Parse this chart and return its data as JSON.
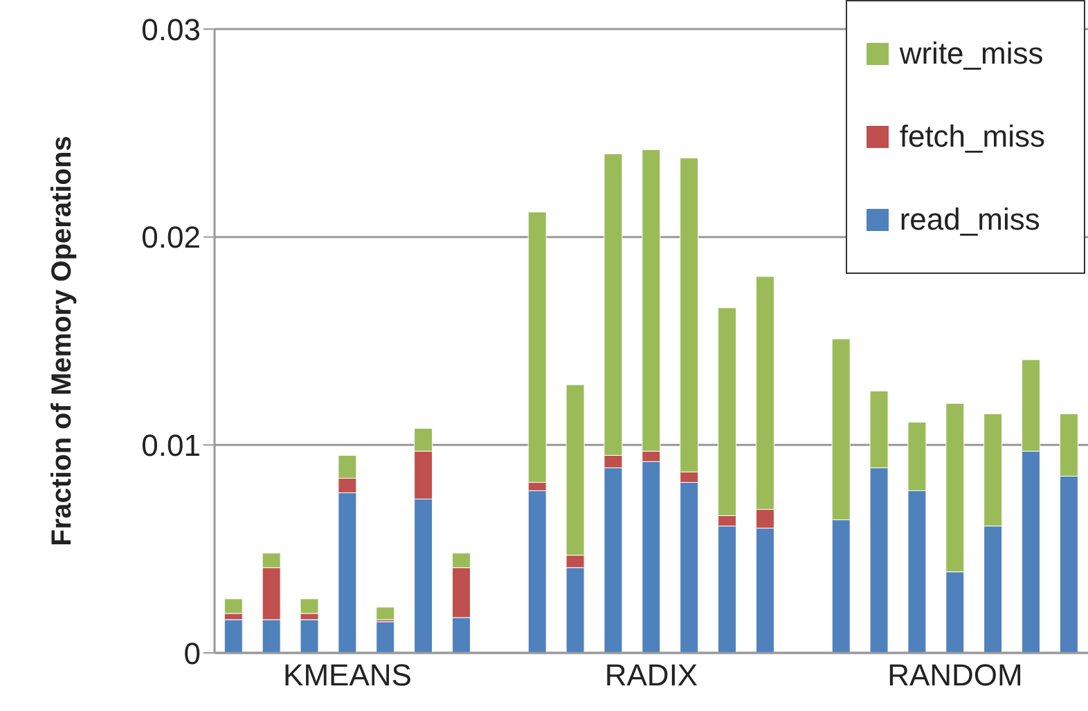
{
  "chart_data": {
    "type": "bar",
    "ylabel": "Fraction of Memory Operations",
    "categories": [
      null,
      null,
      null,
      "KMEANS",
      null,
      null,
      null,
      null,
      null,
      null,
      null,
      "RADIX",
      null,
      null,
      null,
      null,
      null,
      null,
      null,
      "RANDOM",
      null,
      null,
      null
    ],
    "stacked": true,
    "series": [
      {
        "name": "read_miss",
        "color": "#4f81bd",
        "values": [
          0.0016,
          0.0016,
          0.0016,
          0.0077,
          0.0015,
          0.0074,
          0.0017,
          null,
          0.0078,
          0.0041,
          0.0089,
          0.0092,
          0.0082,
          0.0061,
          0.006,
          null,
          0.0064,
          0.0089,
          0.0078,
          0.0039,
          0.0061,
          0.0097,
          0.0085
        ]
      },
      {
        "name": "fetch_miss",
        "color": "#c0504d",
        "values": [
          0.0003,
          0.0025,
          0.0003,
          0.0007,
          0.0001,
          0.0023,
          0.0024,
          null,
          0.0004,
          0.0006,
          0.0006,
          0.0005,
          0.0005,
          0.0005,
          0.0009,
          null,
          0,
          0,
          0,
          0,
          0,
          0,
          0
        ]
      },
      {
        "name": "write_miss",
        "color": "#9bbb59",
        "values": [
          0.0007,
          0.0007,
          0.0007,
          0.0011,
          0.0006,
          0.0011,
          0.0007,
          null,
          0.013,
          0.0082,
          0.0145,
          0.0145,
          0.0151,
          0.01,
          0.0112,
          null,
          0.0087,
          0.0037,
          0.0033,
          0.0081,
          0.0054,
          0.0044,
          0.003
        ]
      }
    ],
    "ylim": [
      0,
      0.03
    ],
    "yticks": [
      0,
      0.01,
      0.02,
      0.03
    ],
    "grid": "y",
    "legend": "top right"
  }
}
